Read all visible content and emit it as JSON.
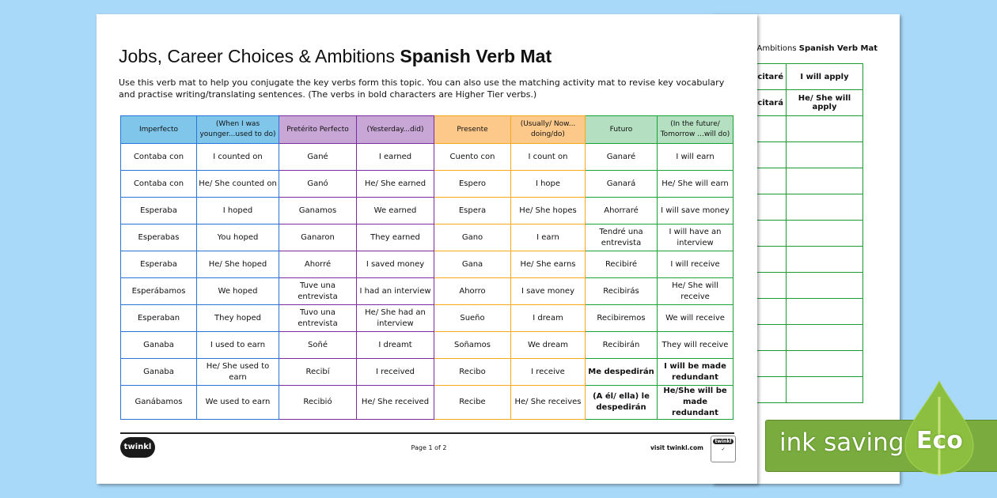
{
  "document": {
    "title_regular": "Jobs, Career Choices & Ambitions",
    "title_bold": "Spanish Verb Mat",
    "intro": "Use this verb mat to help you conjugate the key verbs form this topic. You can also use the matching activity mat to revise key vocabulary and practise writing/translating sentences. (The verbs in bold characters are Higher Tier verbs.)",
    "headers": [
      "Imperfecto",
      "(When I was younger...used to do)",
      "Pretérito Perfecto",
      "(Yesterday...did)",
      "Presente",
      "(Usually/ Now... doing/do)",
      "Futuro",
      "(In the future/ Tomorrow ...will do)"
    ],
    "rows": [
      [
        "Contaba con",
        "I counted on",
        "Gané",
        "I earned",
        "Cuento con",
        "I count on",
        "Ganaré",
        "I will earn"
      ],
      [
        "Contaba con",
        "He/ She counted on",
        "Ganó",
        "He/ She earned",
        "Espero",
        "I hope",
        "Ganará",
        "He/ She will earn"
      ],
      [
        "Esperaba",
        "I hoped",
        "Ganamos",
        "We earned",
        "Espera",
        "He/ She hopes",
        "Ahorraré",
        "I will save money"
      ],
      [
        "Esperabas",
        "You hoped",
        "Ganaron",
        "They earned",
        "Gano",
        "I earn",
        "Tendré una entrevista",
        "I will have an interview"
      ],
      [
        "Esperaba",
        "He/ She hoped",
        "Ahorré",
        "I saved money",
        "Gana",
        "He/ She earns",
        "Recibiré",
        "I will receive"
      ],
      [
        "Esperábamos",
        "We hoped",
        "Tuve una entrevista",
        "I had an interview",
        "Ahorro",
        "I save money",
        "Recibirás",
        "He/ She will receive"
      ],
      [
        "Esperaban",
        "They hoped",
        "Tuvo una entrevista",
        "He/ She had an interview",
        "Sueño",
        "I dream",
        "Recibiremos",
        "We will receive"
      ],
      [
        "Ganaba",
        "I used to earn",
        "Soñé",
        "I dreamt",
        "Soñamos",
        "We dream",
        "Recibirán",
        "They will receive"
      ],
      [
        "Ganaba",
        "He/ She used to earn",
        "Recibí",
        "I received",
        "Recibo",
        "I receive",
        "Me despedirán",
        "I will be made redundant"
      ],
      [
        "Ganábamos",
        "We used to earn",
        "Recibió",
        "He/ She received",
        "Recibe",
        "He/ She receives",
        "(A él/ ella) le despedirán",
        "He/She will be made redundant"
      ]
    ],
    "bold_rows_futuro": [
      8,
      9
    ],
    "footer": {
      "logo": "twinkl",
      "page": "Page 1 of 2",
      "visit": "visit twinkl.com",
      "badge": "twinkl"
    }
  },
  "back_page": {
    "title_regular": "oices & Ambitions",
    "title_bold": "Spanish Verb Mat",
    "rows": [
      [
        "icitaré",
        "I will apply"
      ],
      [
        "icitará",
        "He/ She will apply"
      ],
      [
        "",
        ""
      ],
      [
        "",
        ""
      ],
      [
        "",
        ""
      ],
      [
        "",
        ""
      ],
      [
        "",
        ""
      ],
      [
        "",
        ""
      ],
      [
        "",
        ""
      ],
      [
        "",
        ""
      ],
      [
        "",
        ""
      ],
      [
        "",
        ""
      ],
      [
        "",
        ""
      ]
    ]
  },
  "eco_banner": {
    "text": "ink saving",
    "eco": "Eco",
    "color": "#7aab3e"
  },
  "colors": {
    "background": "#a9d9f9",
    "imperfecto": "#7fc6ea",
    "preterito": "#c8a6d6",
    "presente": "#fcc98b",
    "futuro": "#b5dfc1"
  }
}
